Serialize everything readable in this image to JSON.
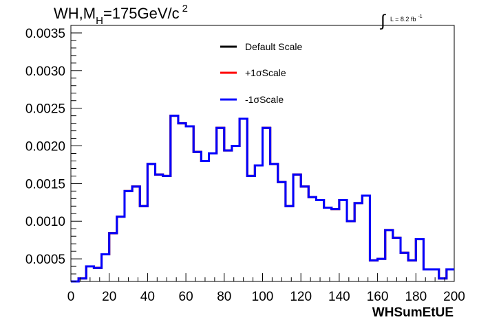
{
  "chart_data": {
    "type": "histogram-step",
    "title": {
      "prefix": "WH,M",
      "subscript": "H",
      "value": "=175GeV/c",
      "superscript": "2"
    },
    "luminosity": {
      "integral_symbol": "∫",
      "text": "L = 8.2 fb",
      "superscript": "-1"
    },
    "xlabel": "WHSumEtUE",
    "ylabel": "",
    "xlim": [
      0,
      200
    ],
    "ylim": [
      0.0002,
      0.0036
    ],
    "x_ticks": [
      "0",
      "20",
      "40",
      "60",
      "80",
      "100",
      "120",
      "140",
      "160",
      "180",
      "200"
    ],
    "y_ticks": [
      "0.0005",
      "0.0010",
      "0.0015",
      "0.0020",
      "0.0025",
      "0.0030",
      "0.0035"
    ],
    "bin_width": 4,
    "bin_edges_start": 0,
    "series": [
      {
        "name": "Default Scale",
        "color": "#000000",
        "values": [
          0.0002,
          0.00024,
          0.0004,
          0.00038,
          0.00056,
          0.00084,
          0.00106,
          0.0014,
          0.00146,
          0.0012,
          0.00176,
          0.00162,
          0.0016,
          0.0024,
          0.0023,
          0.00226,
          0.00192,
          0.0018,
          0.0019,
          0.00224,
          0.00194,
          0.002,
          0.00236,
          0.0016,
          0.00174,
          0.00224,
          0.00176,
          0.00152,
          0.0012,
          0.00162,
          0.00146,
          0.00132,
          0.00128,
          0.00118,
          0.00116,
          0.00128,
          0.001,
          0.00124,
          0.00134,
          0.00048,
          0.0005,
          0.00088,
          0.00078,
          0.00058,
          0.00048,
          0.00076,
          0.00036,
          0.00036,
          0.00024,
          0.00036
        ]
      },
      {
        "name": "+1σScale",
        "color": "#ff0000",
        "values": [
          0.0002,
          0.00024,
          0.0004,
          0.00038,
          0.00056,
          0.00084,
          0.00106,
          0.0014,
          0.00146,
          0.0012,
          0.00176,
          0.00162,
          0.0016,
          0.0024,
          0.0023,
          0.00226,
          0.00192,
          0.0018,
          0.0019,
          0.00224,
          0.00194,
          0.002,
          0.00236,
          0.0016,
          0.00174,
          0.00224,
          0.00176,
          0.00152,
          0.0012,
          0.00162,
          0.00146,
          0.00132,
          0.00128,
          0.00118,
          0.00116,
          0.00128,
          0.001,
          0.00124,
          0.00134,
          0.00048,
          0.0005,
          0.00088,
          0.00078,
          0.00058,
          0.00048,
          0.00076,
          0.00036,
          0.00036,
          0.00024,
          0.00036
        ]
      },
      {
        "name": "-1σScale",
        "color": "#0000ff",
        "values": [
          0.0002,
          0.00024,
          0.0004,
          0.00038,
          0.00056,
          0.00084,
          0.00106,
          0.0014,
          0.00146,
          0.0012,
          0.00176,
          0.00162,
          0.0016,
          0.0024,
          0.0023,
          0.00226,
          0.00192,
          0.0018,
          0.0019,
          0.00224,
          0.00194,
          0.002,
          0.00236,
          0.0016,
          0.00174,
          0.00224,
          0.00176,
          0.00152,
          0.0012,
          0.00162,
          0.00146,
          0.00132,
          0.00128,
          0.00118,
          0.00116,
          0.00128,
          0.001,
          0.00124,
          0.00134,
          0.00048,
          0.0005,
          0.00088,
          0.00078,
          0.00058,
          0.00048,
          0.00076,
          0.00036,
          0.00036,
          0.00024,
          0.00036
        ]
      }
    ],
    "legend_position": "top-center",
    "grid": false
  }
}
